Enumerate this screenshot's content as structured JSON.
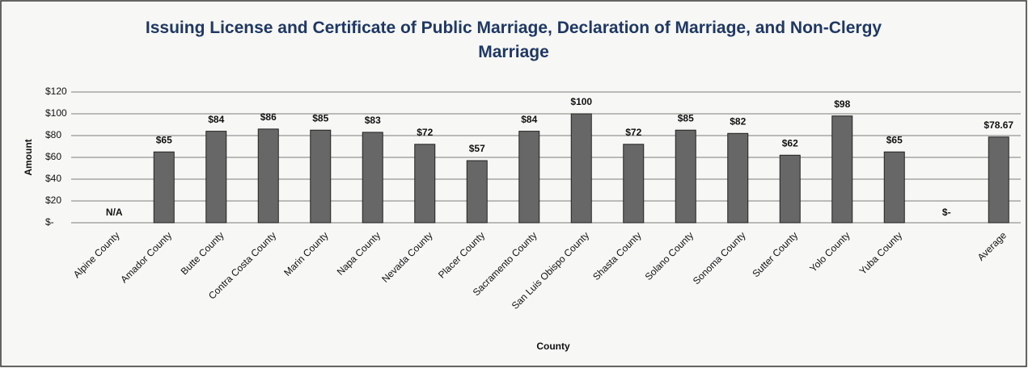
{
  "chart_data": {
    "type": "bar",
    "title": "Issuing License and Certificate of Public Marriage, Declaration of Marriage, and Non-Clergy Marriage",
    "x_label": "County",
    "y_label": "Amount",
    "categories": [
      "Alpine County",
      "Amador County",
      "Butte County",
      "Contra Costa County",
      "Marin County",
      "Napa County",
      "Nevada County",
      "Placer County",
      "Sacramento County",
      "San Luis Obispo County",
      "Shasta County",
      "Solano County",
      "Sonoma County",
      "Sutter County",
      "Yolo County",
      "Yuba County",
      null,
      "Average"
    ],
    "values": [
      null,
      65,
      84,
      86,
      85,
      83,
      72,
      57,
      84,
      100,
      72,
      85,
      82,
      62,
      98,
      65,
      0,
      78.67
    ],
    "value_labels": [
      "N/A",
      "$65",
      "$84",
      "$86",
      "$85",
      "$83",
      "$72",
      "$57",
      "$84",
      "$100",
      "$72",
      "$85",
      "$82",
      "$62",
      "$98",
      "$65",
      "$-",
      "$78.67"
    ],
    "color": "#676767",
    "ylim": [
      0,
      120
    ],
    "yticks": [
      {
        "value": 0,
        "label": "$-"
      },
      {
        "value": 20,
        "label": "$20"
      },
      {
        "value": 40,
        "label": "$40"
      },
      {
        "value": 60,
        "label": "$60"
      },
      {
        "value": 80,
        "label": "$80"
      },
      {
        "value": 100,
        "label": "$100"
      },
      {
        "value": 120,
        "label": "$120"
      }
    ],
    "grid": true
  }
}
